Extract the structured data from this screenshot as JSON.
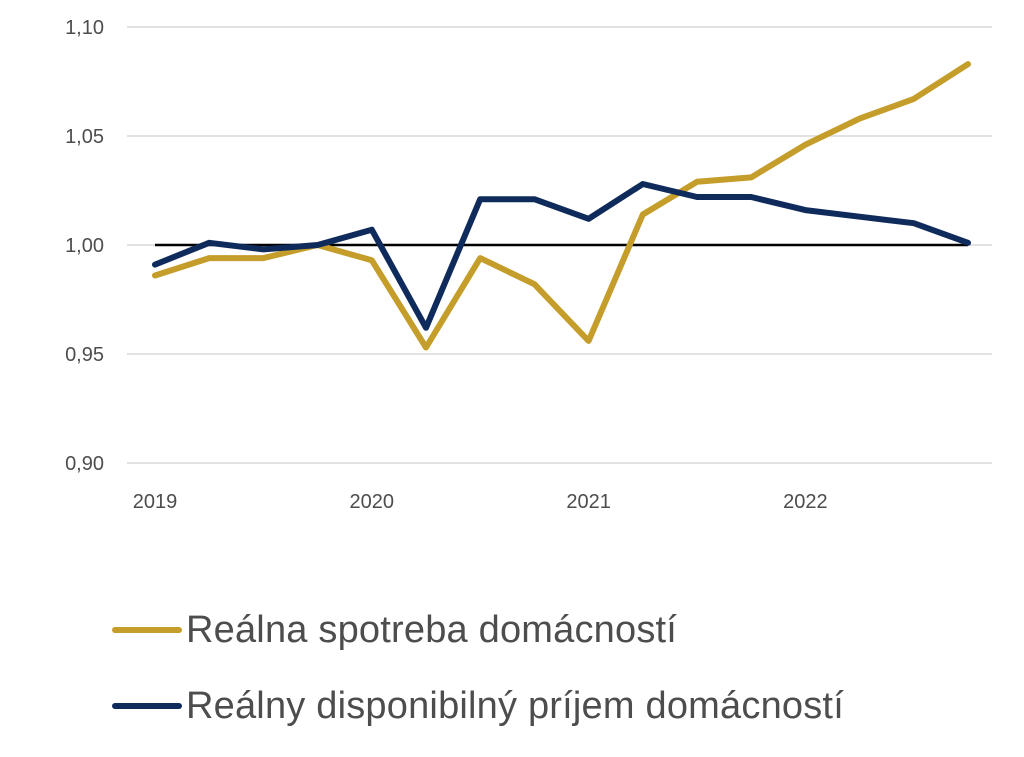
{
  "chart_data": {
    "type": "line",
    "x": [
      "2019Q1",
      "2019Q2",
      "2019Q3",
      "2019Q4",
      "2020Q1",
      "2020Q2",
      "2020Q3",
      "2020Q4",
      "2021Q1",
      "2021Q2",
      "2021Q3",
      "2021Q4",
      "2022Q1",
      "2022Q2",
      "2022Q3",
      "2022Q4"
    ],
    "x_tick_labels": [
      "2019",
      "2020",
      "2021",
      "2022"
    ],
    "y_tick_labels": [
      "0,90",
      "0,95",
      "1,00",
      "1,05",
      "1,10"
    ],
    "ylim": [
      0.9,
      1.1
    ],
    "grid": true,
    "reference_line": 1.0,
    "legend_position": "bottom",
    "series": [
      {
        "name": "Reálna spotreba domácností",
        "color": "#c59d2a",
        "values": [
          0.986,
          0.994,
          0.994,
          1.0,
          0.993,
          0.953,
          0.994,
          0.982,
          0.956,
          1.014,
          1.029,
          1.031,
          1.046,
          1.058,
          1.067,
          1.083
        ]
      },
      {
        "name": "Reálny disponibilný príjem domácností",
        "color": "#0f2b5b",
        "values": [
          0.991,
          1.001,
          0.998,
          1.0,
          1.007,
          0.962,
          1.021,
          1.021,
          1.012,
          1.028,
          1.022,
          1.022,
          1.016,
          1.013,
          1.01,
          1.001
        ]
      }
    ]
  }
}
